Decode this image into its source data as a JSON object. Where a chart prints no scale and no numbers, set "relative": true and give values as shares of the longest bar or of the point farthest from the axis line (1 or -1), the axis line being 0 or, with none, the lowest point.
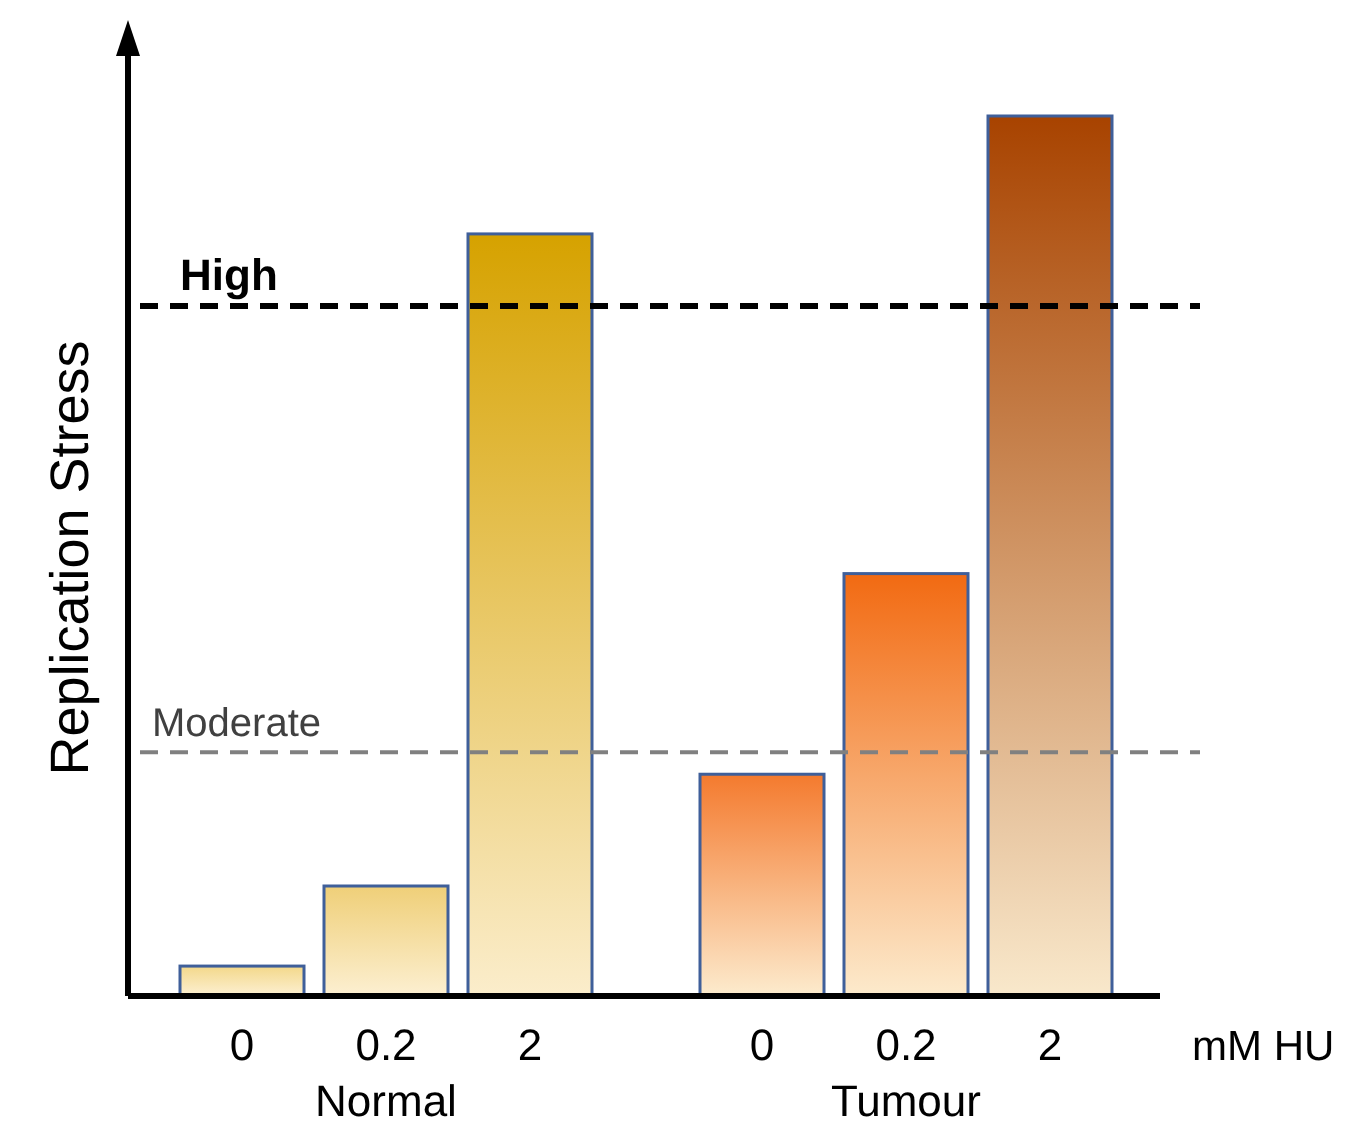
{
  "chart_data": {
    "type": "bar",
    "relative": true,
    "ylabel": "Replication Stress",
    "xlabel": "mM HU",
    "categories": [
      "0",
      "0.2",
      "2",
      "0",
      "0.2",
      "2"
    ],
    "values": [
      0.034,
      0.125,
      0.866,
      0.252,
      0.48,
      1.0
    ],
    "colors": [
      "#f3d88a",
      "#efcf78",
      "#d6a200",
      "#f47a2e",
      "#f26a12",
      "#a84300"
    ],
    "ref_lines": [
      {
        "axis": "y",
        "value": 0.784,
        "label": "High",
        "color": "#000000",
        "line_style": "dashed"
      },
      {
        "axis": "y",
        "value": 0.277,
        "label": "Moderate",
        "color": "#808080",
        "line_style": "dashed"
      }
    ],
    "annotations": [
      "Normal",
      "Tumour"
    ]
  }
}
